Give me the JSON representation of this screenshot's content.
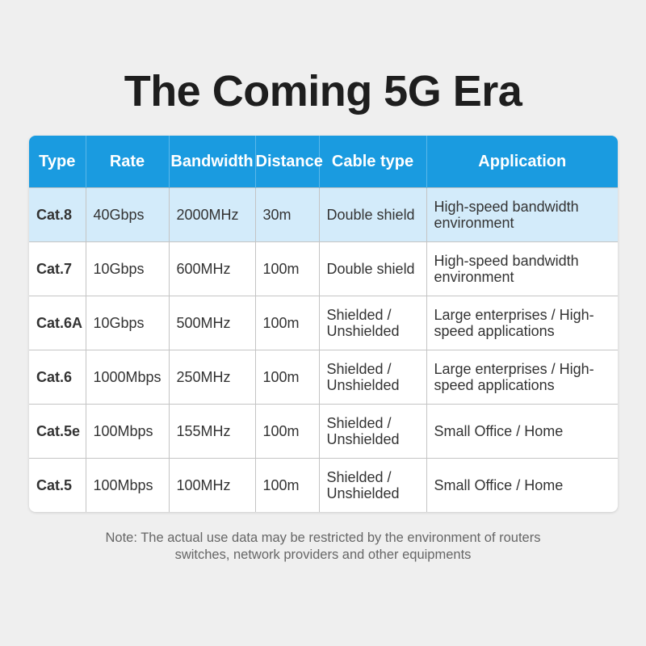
{
  "title": "The Coming 5G Era",
  "colors": {
    "header": "#1a9be0",
    "highlight_row": "#d3ebfa",
    "background": "#efefef"
  },
  "table": {
    "headers": [
      "Type",
      "Rate",
      "Bandwidth",
      "Distance",
      "Cable type",
      "Application"
    ],
    "rows": [
      [
        "Cat.8",
        "40Gbps",
        "2000MHz",
        "30m",
        "Double shield",
        "High-speed bandwidth environment"
      ],
      [
        "Cat.7",
        "10Gbps",
        "600MHz",
        "100m",
        "Double shield",
        "High-speed bandwidth environment"
      ],
      [
        "Cat.6A",
        "10Gbps",
        "500MHz",
        "100m",
        "Shielded / Unshielded",
        "Large enterprises / High-speed applications"
      ],
      [
        "Cat.6",
        "1000Mbps",
        "250MHz",
        "100m",
        "Shielded / Unshielded",
        "Large enterprises / High-speed applications"
      ],
      [
        "Cat.5e",
        "100Mbps",
        "155MHz",
        "100m",
        "Shielded / Unshielded",
        "Small Office / Home"
      ],
      [
        "Cat.5",
        "100Mbps",
        "100MHz",
        "100m",
        "Shielded / Unshielded",
        "Small Office / Home"
      ]
    ]
  },
  "note_line1": "Note: The actual use data may be restricted by the environment of routers",
  "note_line2": "switches, network providers and other equipments"
}
